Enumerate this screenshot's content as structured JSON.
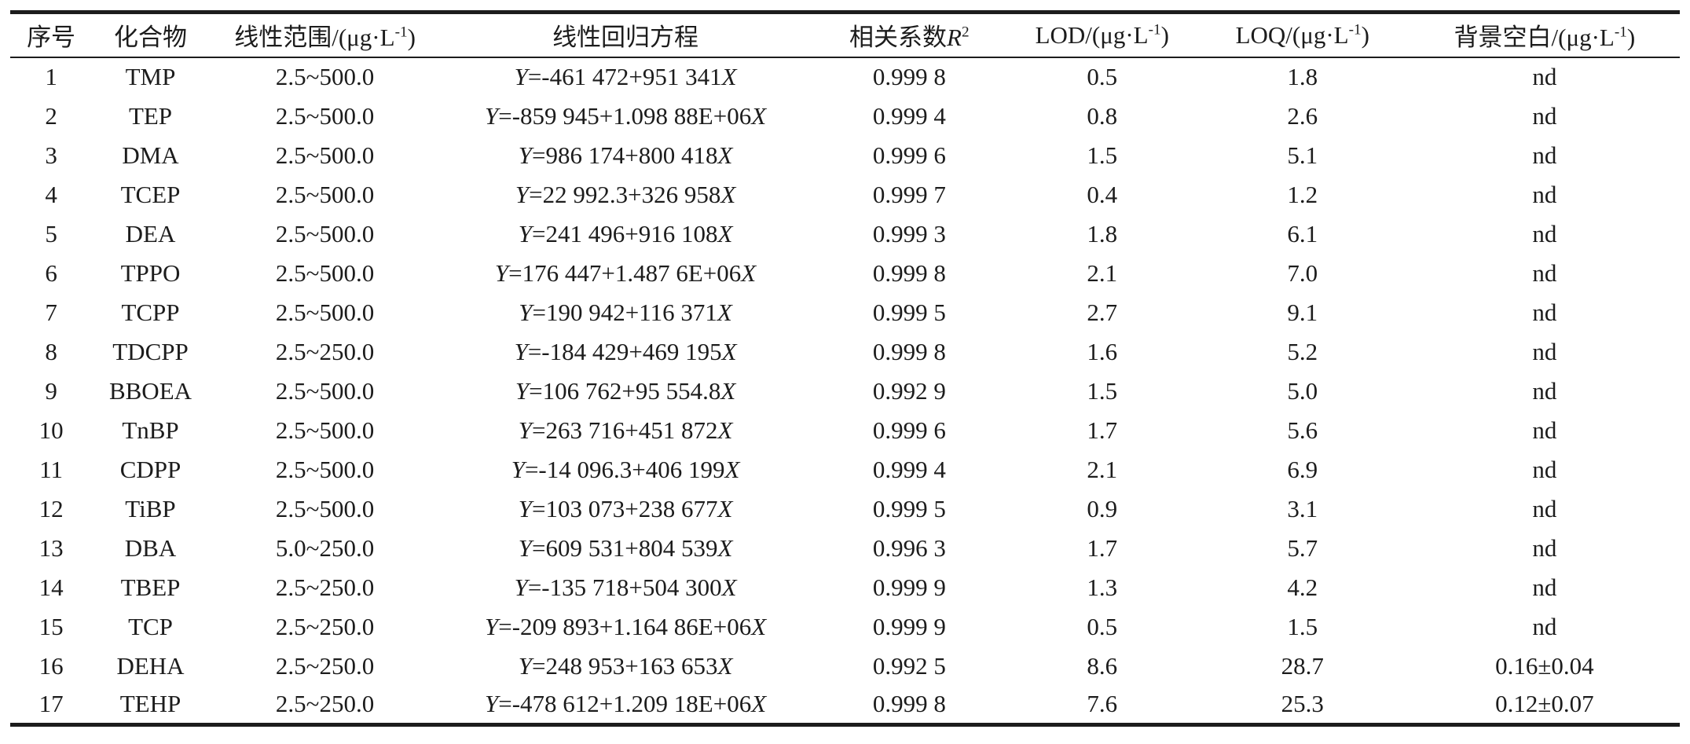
{
  "colors": {
    "background": "#ffffff",
    "text": "#1c1c1c",
    "rule": "#1c1c1c"
  },
  "table": {
    "columns": [
      {
        "label": "序号"
      },
      {
        "label": "化合物"
      },
      {
        "label": "线性范围/(μg·L⁻¹)"
      },
      {
        "label": "线性回归方程"
      },
      {
        "label": "相关系数R²"
      },
      {
        "label": "LOD/(μg·L⁻¹)"
      },
      {
        "label": "LOQ/(μg·L⁻¹)"
      },
      {
        "label": "背景空白/(μg·L⁻¹)"
      }
    ],
    "rows": [
      {
        "no": "1",
        "compound": "TMP",
        "range": "2.5~500.0",
        "equation": "Y=-461 472+951 341X",
        "r2": "0.999 8",
        "lod": "0.5",
        "loq": "1.8",
        "blank": "nd"
      },
      {
        "no": "2",
        "compound": "TEP",
        "range": "2.5~500.0",
        "equation": "Y=-859 945+1.098 88E+06X",
        "r2": "0.999 4",
        "lod": "0.8",
        "loq": "2.6",
        "blank": "nd"
      },
      {
        "no": "3",
        "compound": "DMA",
        "range": "2.5~500.0",
        "equation": "Y=986 174+800 418X",
        "r2": "0.999 6",
        "lod": "1.5",
        "loq": "5.1",
        "blank": "nd"
      },
      {
        "no": "4",
        "compound": "TCEP",
        "range": "2.5~500.0",
        "equation": "Y=22 992.3+326 958X",
        "r2": "0.999 7",
        "lod": "0.4",
        "loq": "1.2",
        "blank": "nd"
      },
      {
        "no": "5",
        "compound": "DEA",
        "range": "2.5~500.0",
        "equation": "Y=241 496+916 108X",
        "r2": "0.999 3",
        "lod": "1.8",
        "loq": "6.1",
        "blank": "nd"
      },
      {
        "no": "6",
        "compound": "TPPO",
        "range": "2.5~500.0",
        "equation": "Y=176 447+1.487 6E+06X",
        "r2": "0.999 8",
        "lod": "2.1",
        "loq": "7.0",
        "blank": "nd"
      },
      {
        "no": "7",
        "compound": "TCPP",
        "range": "2.5~500.0",
        "equation": "Y=190 942+116 371X",
        "r2": "0.999 5",
        "lod": "2.7",
        "loq": "9.1",
        "blank": "nd"
      },
      {
        "no": "8",
        "compound": "TDCPP",
        "range": "2.5~250.0",
        "equation": "Y=-184 429+469 195X",
        "r2": "0.999 8",
        "lod": "1.6",
        "loq": "5.2",
        "blank": "nd"
      },
      {
        "no": "9",
        "compound": "BBOEA",
        "range": "2.5~500.0",
        "equation": "Y=106 762+95 554.8X",
        "r2": "0.992 9",
        "lod": "1.5",
        "loq": "5.0",
        "blank": "nd"
      },
      {
        "no": "10",
        "compound": "TnBP",
        "range": "2.5~500.0",
        "equation": "Y=263 716+451 872X",
        "r2": "0.999 6",
        "lod": "1.7",
        "loq": "5.6",
        "blank": "nd"
      },
      {
        "no": "11",
        "compound": "CDPP",
        "range": "2.5~500.0",
        "equation": "Y=-14 096.3+406 199X",
        "r2": "0.999 4",
        "lod": "2.1",
        "loq": "6.9",
        "blank": "nd"
      },
      {
        "no": "12",
        "compound": "TiBP",
        "range": "2.5~500.0",
        "equation": "Y=103 073+238 677X",
        "r2": "0.999 5",
        "lod": "0.9",
        "loq": "3.1",
        "blank": "nd"
      },
      {
        "no": "13",
        "compound": "DBA",
        "range": "5.0~250.0",
        "equation": "Y=609 531+804 539X",
        "r2": "0.996 3",
        "lod": "1.7",
        "loq": "5.7",
        "blank": "nd"
      },
      {
        "no": "14",
        "compound": "TBEP",
        "range": "2.5~250.0",
        "equation": "Y=-135 718+504 300X",
        "r2": "0.999 9",
        "lod": "1.3",
        "loq": "4.2",
        "blank": "nd"
      },
      {
        "no": "15",
        "compound": "TCP",
        "range": "2.5~250.0",
        "equation": "Y=-209 893+1.164 86E+06X",
        "r2": "0.999 9",
        "lod": "0.5",
        "loq": "1.5",
        "blank": "nd"
      },
      {
        "no": "16",
        "compound": "DEHA",
        "range": "2.5~250.0",
        "equation": "Y=248 953+163 653X",
        "r2": "0.992 5",
        "lod": "8.6",
        "loq": "28.7",
        "blank": "0.16±0.04"
      },
      {
        "no": "17",
        "compound": "TEHP",
        "range": "2.5~250.0",
        "equation": "Y=-478 612+1.209 18E+06X",
        "r2": "0.999 8",
        "lod": "7.6",
        "loq": "25.3",
        "blank": "0.12±0.07"
      }
    ]
  }
}
